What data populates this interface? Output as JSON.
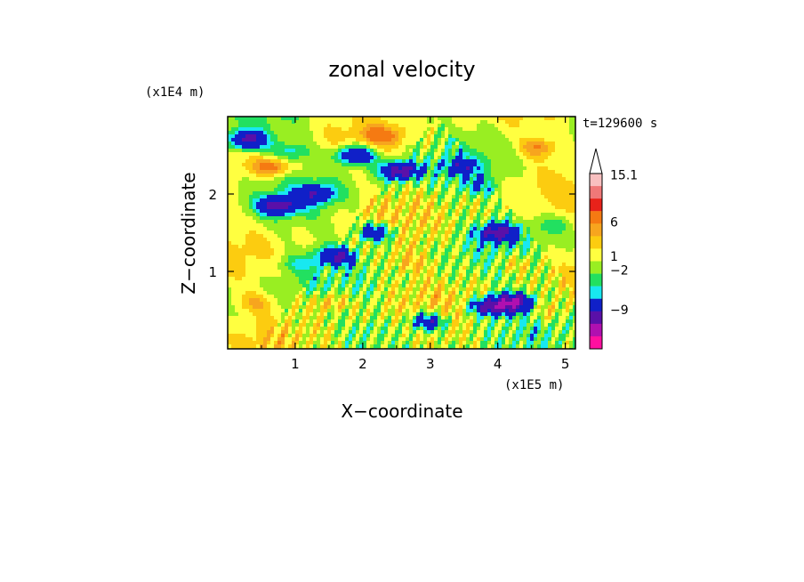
{
  "chart_data": {
    "type": "heatmap",
    "title": "zonal velocity",
    "xlabel": "X−coordinate",
    "ylabel": "Z−coordinate",
    "x_scale_label": "(x1E5 m)",
    "y_scale_label": "(x1E4 m)",
    "time_label": "t=129600 s",
    "xlim": [
      0,
      5.15
    ],
    "ylim": [
      0,
      3.0
    ],
    "xticks": [
      1,
      2,
      3,
      4,
      5
    ],
    "yticks": [
      1,
      2
    ],
    "grid": false,
    "colorbar": {
      "labels": [
        "15.1",
        "6",
        "1",
        "−2",
        "−9"
      ],
      "levels_high_to_low": [
        {
          "min": 12,
          "color": "#f9c0c0"
        },
        {
          "min": 9,
          "color": "#f07878"
        },
        {
          "min": 6,
          "color": "#e8221a"
        },
        {
          "min": 3,
          "color": "#f57a12"
        },
        {
          "min": 2,
          "color": "#f7a51e"
        },
        {
          "min": 1,
          "color": "#fccc10"
        },
        {
          "min": 0,
          "color": "#ffff40"
        },
        {
          "min": -1,
          "color": "#99ee22"
        },
        {
          "min": -2,
          "color": "#22e060"
        },
        {
          "min": -3,
          "color": "#18e8f0"
        },
        {
          "min": -6,
          "color": "#1020c8"
        },
        {
          "min": -9,
          "color": "#5a10a8"
        },
        {
          "min": -12,
          "color": "#b010b0"
        },
        {
          "min": -15,
          "color": "#ff10a0"
        }
      ],
      "arrow_color": "#ffffff"
    },
    "features": [
      {
        "x": 0.3,
        "z": 2.7,
        "value": -7
      },
      {
        "x": 0.65,
        "z": 2.35,
        "value": 4
      },
      {
        "x": 0.95,
        "z": 2.55,
        "value": -2.5
      },
      {
        "x": 0.75,
        "z": 1.85,
        "value": -7
      },
      {
        "x": 1.9,
        "z": 2.5,
        "value": -7
      },
      {
        "x": 2.55,
        "z": 2.3,
        "value": -8
      },
      {
        "x": 1.3,
        "z": 2.0,
        "value": -5
      },
      {
        "x": 2.3,
        "z": 2.75,
        "value": 3
      },
      {
        "x": 3.45,
        "z": 2.35,
        "value": -4
      },
      {
        "x": 4.6,
        "z": 2.6,
        "value": 3
      },
      {
        "x": 3.7,
        "z": 2.1,
        "value": -2.5
      },
      {
        "x": 4.0,
        "z": 1.5,
        "value": -7
      },
      {
        "x": 2.2,
        "z": 1.5,
        "value": -6
      },
      {
        "x": 1.6,
        "z": 1.2,
        "value": -6
      },
      {
        "x": 4.25,
        "z": 0.6,
        "value": -8
      },
      {
        "x": 3.9,
        "z": 0.55,
        "value": -8
      },
      {
        "x": 2.95,
        "z": 0.35,
        "value": -6
      },
      {
        "x": 0.4,
        "z": 0.6,
        "value": 2
      },
      {
        "x": 1.5,
        "z": 0.6,
        "value": 2.5
      },
      {
        "x": 4.7,
        "z": 0.5,
        "value": 1.5
      },
      {
        "x": 4.3,
        "z": 1.1,
        "value": 1.5
      },
      {
        "x": 2.7,
        "z": 1.1,
        "value": 1.5
      },
      {
        "x": 1.0,
        "z": 1.1,
        "value": -1.5
      },
      {
        "x": 2.1,
        "z": 0.25,
        "value": -1.5
      },
      {
        "x": 4.8,
        "z": 1.6,
        "value": -1.5
      }
    ]
  }
}
